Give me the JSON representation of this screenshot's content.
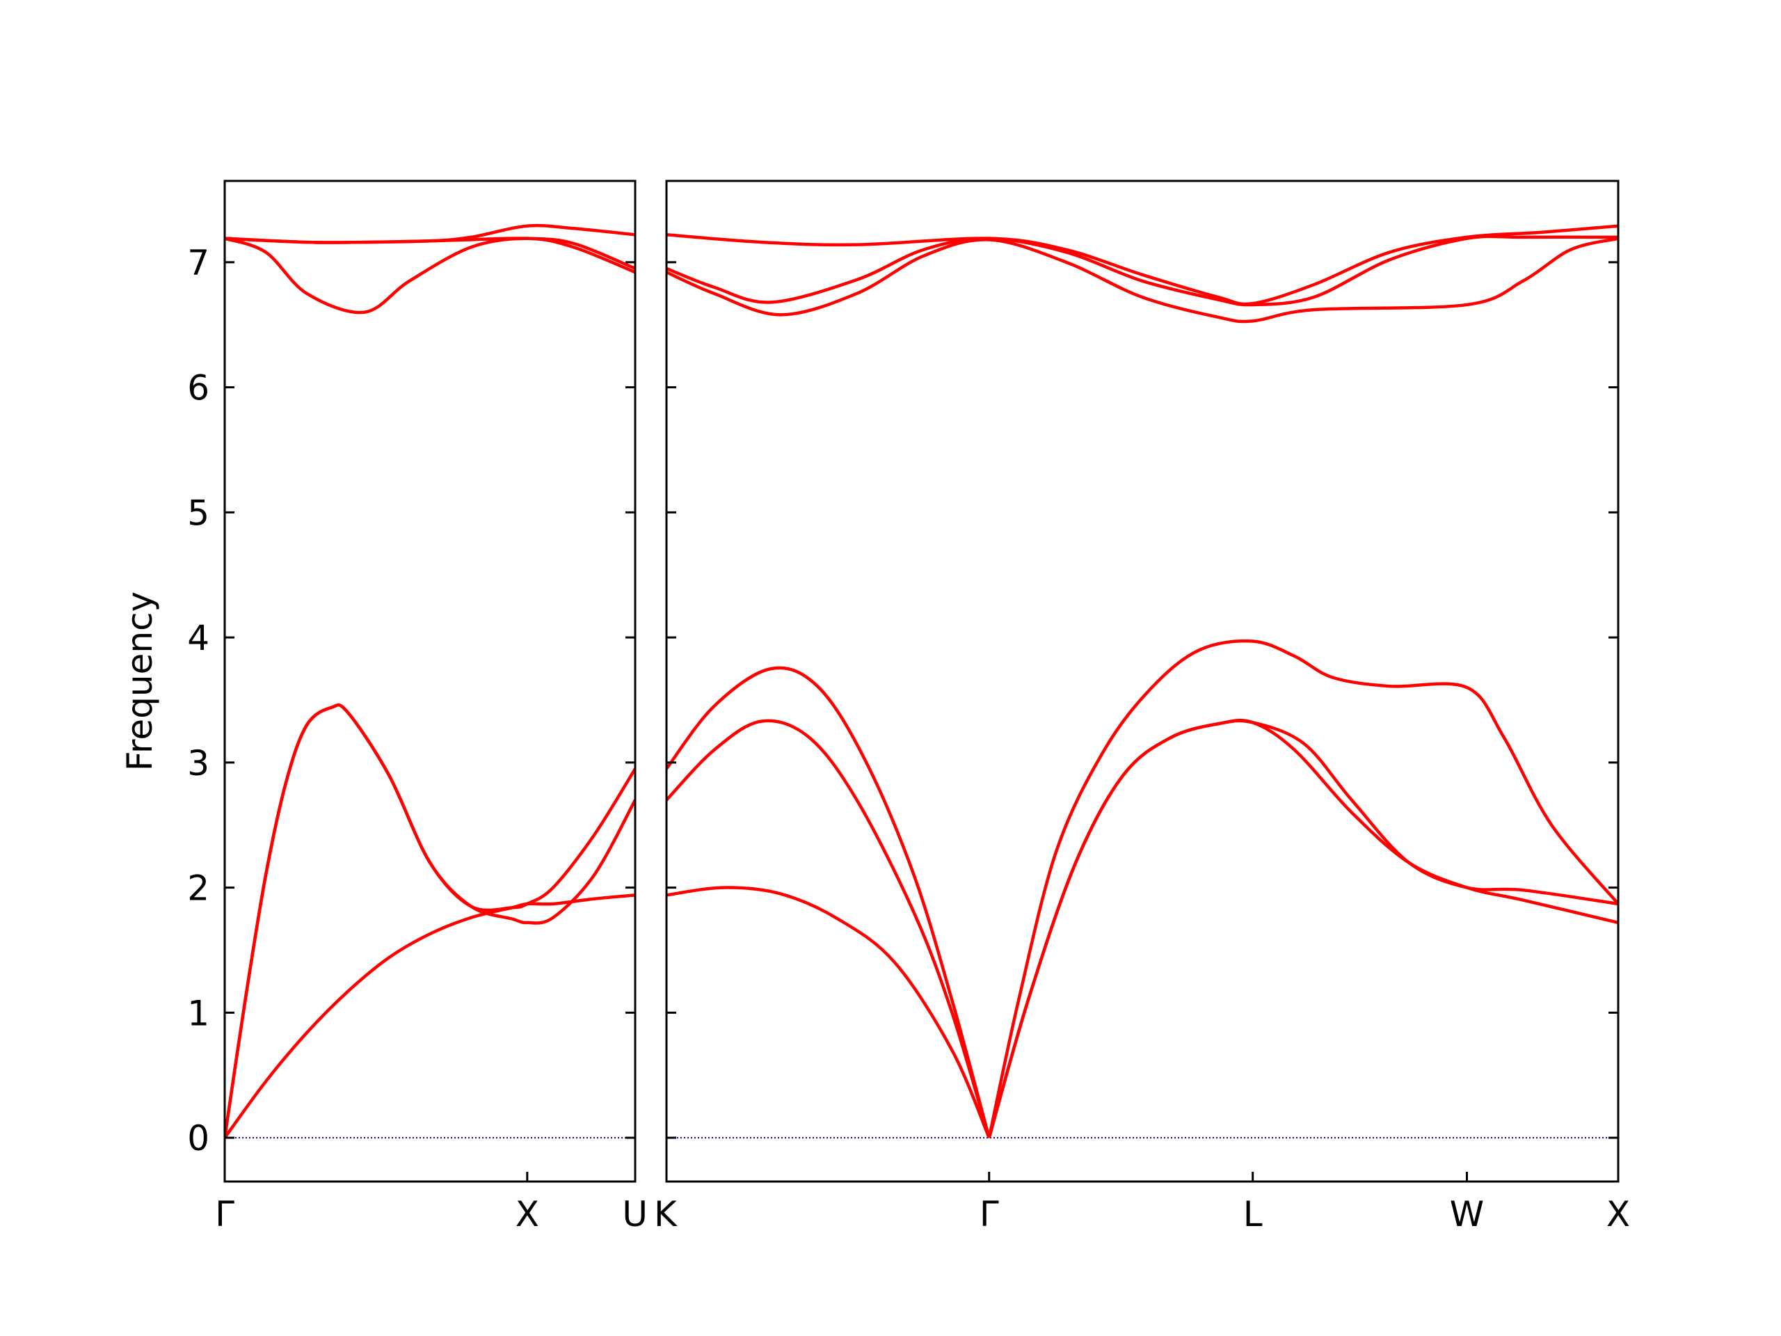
{
  "chart_data": {
    "type": "line",
    "ylabel": "Frequency",
    "ylim": [
      -0.35,
      7.65
    ],
    "yticks": [
      0,
      1,
      2,
      3,
      4,
      5,
      6,
      7
    ],
    "zero_line": true,
    "line_color": "#ff0000",
    "zero_line_color": "#0000aa",
    "segment_labels": [
      "Γ",
      "X",
      "U|K",
      "Γ",
      "L",
      "W",
      "X"
    ],
    "panels": [
      {
        "x_labels": [
          "Γ",
          "X",
          "U"
        ],
        "x_label_pos": [
          0,
          0.737,
          1
        ],
        "series": [
          {
            "name": "band 1",
            "points": [
              [
                0,
                0
              ],
              [
                0.1,
                0.45
              ],
              [
                0.2,
                0.84
              ],
              [
                0.3,
                1.17
              ],
              [
                0.4,
                1.44
              ],
              [
                0.5,
                1.63
              ],
              [
                0.6,
                1.76
              ],
              [
                0.7,
                1.84
              ],
              [
                0.737,
                1.87
              ],
              [
                0.8,
                1.87
              ],
              [
                0.9,
                1.91
              ],
              [
                1,
                1.94
              ]
            ]
          },
          {
            "name": "band 2",
            "points": [
              [
                0,
                0
              ],
              [
                0.05,
                1.1
              ],
              [
                0.1,
                2.1
              ],
              [
                0.15,
                2.85
              ],
              [
                0.2,
                3.3
              ],
              [
                0.26,
                3.44
              ],
              [
                0.3,
                3.4
              ],
              [
                0.4,
                2.9
              ],
              [
                0.5,
                2.2
              ],
              [
                0.6,
                1.85
              ],
              [
                0.7,
                1.75
              ],
              [
                0.737,
                1.72
              ],
              [
                0.8,
                1.76
              ],
              [
                0.9,
                2.1
              ],
              [
                1,
                2.7
              ]
            ]
          },
          {
            "name": "band 3",
            "points": [
              [
                0,
                0
              ],
              [
                0.05,
                1.1
              ],
              [
                0.1,
                2.1
              ],
              [
                0.15,
                2.85
              ],
              [
                0.2,
                3.3
              ],
              [
                0.26,
                3.44
              ],
              [
                0.3,
                3.4
              ],
              [
                0.4,
                2.9
              ],
              [
                0.5,
                2.2
              ],
              [
                0.6,
                1.85
              ],
              [
                0.7,
                1.84
              ],
              [
                0.737,
                1.87
              ],
              [
                0.8,
                2.0
              ],
              [
                0.9,
                2.42
              ],
              [
                1,
                2.95
              ]
            ]
          },
          {
            "name": "band 4",
            "points": [
              [
                0,
                7.19
              ],
              [
                0.1,
                7.08
              ],
              [
                0.2,
                6.75
              ],
              [
                0.34,
                6.6
              ],
              [
                0.45,
                6.85
              ],
              [
                0.6,
                7.12
              ],
              [
                0.737,
                7.19
              ],
              [
                0.85,
                7.12
              ],
              [
                1,
                6.92
              ]
            ]
          },
          {
            "name": "band 5",
            "points": [
              [
                0,
                7.19
              ],
              [
                0.2,
                7.16
              ],
              [
                0.34,
                7.16
              ],
              [
                0.5,
                7.17
              ],
              [
                0.6,
                7.18
              ],
              [
                0.737,
                7.19
              ],
              [
                0.85,
                7.15
              ],
              [
                1,
                6.95
              ]
            ]
          },
          {
            "name": "band 6",
            "points": [
              [
                0,
                7.19
              ],
              [
                0.2,
                7.16
              ],
              [
                0.34,
                7.16
              ],
              [
                0.5,
                7.17
              ],
              [
                0.6,
                7.2
              ],
              [
                0.737,
                7.29
              ],
              [
                0.85,
                7.27
              ],
              [
                1,
                7.22
              ]
            ]
          }
        ]
      },
      {
        "x_labels": [
          "K",
          "Γ",
          "L",
          "W",
          "X"
        ],
        "x_label_pos": [
          0,
          0.339,
          0.616,
          0.841,
          1
        ],
        "series": [
          {
            "name": "band 1",
            "points": [
              [
                0,
                1.94
              ],
              [
                0.06,
                2.0
              ],
              [
                0.12,
                1.95
              ],
              [
                0.18,
                1.75
              ],
              [
                0.24,
                1.4
              ],
              [
                0.3,
                0.7
              ],
              [
                0.339,
                0
              ]
            ]
          },
          {
            "name": "band 2",
            "points": [
              [
                0,
                2.7
              ],
              [
                0.05,
                3.1
              ],
              [
                0.1,
                3.33
              ],
              [
                0.15,
                3.2
              ],
              [
                0.2,
                2.7
              ],
              [
                0.26,
                1.8
              ],
              [
                0.3,
                1.0
              ],
              [
                0.339,
                0
              ]
            ]
          },
          {
            "name": "band 3",
            "points": [
              [
                0,
                2.95
              ],
              [
                0.05,
                3.45
              ],
              [
                0.11,
                3.75
              ],
              [
                0.16,
                3.6
              ],
              [
                0.21,
                3.0
              ],
              [
                0.26,
                2.1
              ],
              [
                0.3,
                1.1
              ],
              [
                0.339,
                0
              ]
            ]
          },
          {
            "name": "band 4",
            "points": [
              [
                0.339,
                0
              ],
              [
                0.38,
                1.1
              ],
              [
                0.43,
                2.2
              ],
              [
                0.48,
                2.9
              ],
              [
                0.53,
                3.2
              ],
              [
                0.58,
                3.31
              ],
              [
                0.616,
                3.32
              ],
              [
                0.66,
                3.1
              ],
              [
                0.72,
                2.6
              ],
              [
                0.78,
                2.2
              ],
              [
                0.841,
                2.0
              ],
              [
                0.9,
                1.9
              ],
              [
                1,
                1.72
              ]
            ]
          },
          {
            "name": "band 5",
            "points": [
              [
                0.339,
                0
              ],
              [
                0.38,
                1.1
              ],
              [
                0.43,
                2.2
              ],
              [
                0.48,
                2.9
              ],
              [
                0.53,
                3.2
              ],
              [
                0.58,
                3.31
              ],
              [
                0.616,
                3.32
              ],
              [
                0.67,
                3.15
              ],
              [
                0.72,
                2.7
              ],
              [
                0.78,
                2.2
              ],
              [
                0.841,
                2.0
              ],
              [
                0.9,
                1.98
              ],
              [
                1,
                1.87
              ]
            ]
          },
          {
            "name": "band 6",
            "points": [
              [
                0.339,
                0
              ],
              [
                0.37,
                1.1
              ],
              [
                0.41,
                2.3
              ],
              [
                0.46,
                3.1
              ],
              [
                0.51,
                3.6
              ],
              [
                0.56,
                3.9
              ],
              [
                0.616,
                3.97
              ],
              [
                0.66,
                3.85
              ],
              [
                0.7,
                3.68
              ],
              [
                0.76,
                3.61
              ],
              [
                0.841,
                3.6
              ],
              [
                0.88,
                3.2
              ],
              [
                0.93,
                2.5
              ],
              [
                1,
                1.87
              ]
            ]
          },
          {
            "name": "band 7",
            "points": [
              [
                0,
                6.92
              ],
              [
                0.05,
                6.75
              ],
              [
                0.12,
                6.58
              ],
              [
                0.2,
                6.75
              ],
              [
                0.27,
                7.05
              ],
              [
                0.339,
                7.18
              ],
              [
                0.42,
                7.0
              ],
              [
                0.5,
                6.72
              ],
              [
                0.58,
                6.56
              ],
              [
                0.616,
                6.53
              ],
              [
                0.68,
                6.62
              ],
              [
                0.841,
                6.66
              ],
              [
                0.9,
                6.85
              ],
              [
                0.95,
                7.1
              ],
              [
                1,
                7.19
              ]
            ]
          },
          {
            "name": "band 8",
            "points": [
              [
                0,
                6.95
              ],
              [
                0.05,
                6.8
              ],
              [
                0.11,
                6.68
              ],
              [
                0.2,
                6.86
              ],
              [
                0.27,
                7.1
              ],
              [
                0.339,
                7.19
              ],
              [
                0.42,
                7.08
              ],
              [
                0.5,
                6.85
              ],
              [
                0.58,
                6.7
              ],
              [
                0.616,
                6.66
              ],
              [
                0.68,
                6.72
              ],
              [
                0.76,
                7.02
              ],
              [
                0.841,
                7.19
              ],
              [
                0.9,
                7.2
              ],
              [
                1,
                7.2
              ]
            ]
          },
          {
            "name": "band 9",
            "points": [
              [
                0,
                7.22
              ],
              [
                0.1,
                7.16
              ],
              [
                0.2,
                7.14
              ],
              [
                0.339,
                7.19
              ],
              [
                0.42,
                7.1
              ],
              [
                0.5,
                6.9
              ],
              [
                0.58,
                6.72
              ],
              [
                0.616,
                6.67
              ],
              [
                0.68,
                6.82
              ],
              [
                0.76,
                7.08
              ],
              [
                0.841,
                7.2
              ],
              [
                0.92,
                7.24
              ],
              [
                1,
                7.29
              ]
            ]
          }
        ]
      }
    ]
  }
}
